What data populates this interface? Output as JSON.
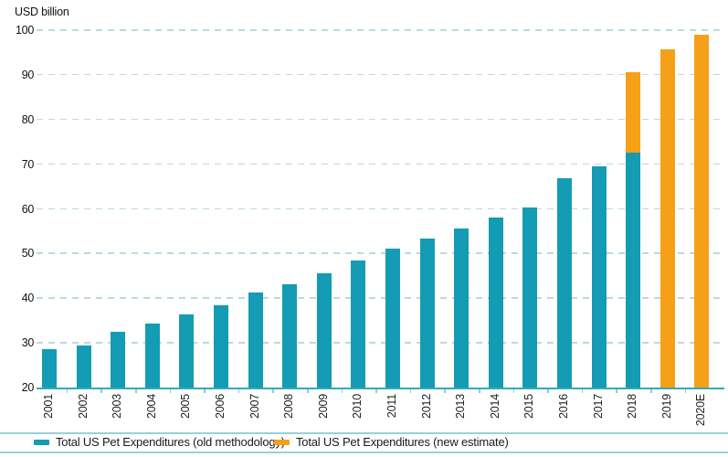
{
  "header": {
    "unit_label": "USD billion"
  },
  "colors": {
    "old_series": "#149cb4",
    "new_series": "#f6a018",
    "gridline": "#b9dae1",
    "axis_line": "#33a9bb",
    "xtick": "#8ecbd6",
    "legend_line": "#9bd0da",
    "text": "#1a1a1a"
  },
  "legend": {
    "items": [
      {
        "label": "Total US Pet Expenditures (old methodology)",
        "color_key": "old_series"
      },
      {
        "label": "Total US Pet Expenditures (new estimate)",
        "color_key": "new_series"
      }
    ],
    "position": "bottom"
  },
  "chart_data": {
    "type": "bar",
    "title": "",
    "ylabel": "USD billion",
    "xlabel": "",
    "ylim": [
      20,
      100
    ],
    "yticks": [
      20,
      30,
      40,
      50,
      60,
      70,
      80,
      90,
      100
    ],
    "grid": "dashed horizontal",
    "legend_position": "bottom",
    "stacked": "2018 shows old methodology (teal) with new-estimate remainder (orange) stacked on top; series values are cumulative totals",
    "categories": [
      "2001",
      "2002",
      "2003",
      "2004",
      "2005",
      "2006",
      "2007",
      "2008",
      "2009",
      "2010",
      "2011",
      "2012",
      "2013",
      "2014",
      "2015",
      "2016",
      "2017",
      "2018",
      "2019",
      "2020E"
    ],
    "series": [
      {
        "name": "Total US Pet Expenditures (old methodology)",
        "color_key": "old_series",
        "values": [
          28.5,
          29.5,
          32.4,
          34.4,
          36.3,
          38.5,
          41.2,
          43.2,
          45.5,
          48.4,
          51.0,
          53.3,
          55.7,
          58.0,
          60.3,
          66.8,
          69.5,
          72.6,
          null,
          null
        ]
      },
      {
        "name": "Total US Pet Expenditures (new estimate)",
        "color_key": "new_series",
        "values": [
          null,
          null,
          null,
          null,
          null,
          null,
          null,
          null,
          null,
          null,
          null,
          null,
          null,
          null,
          null,
          null,
          null,
          90.5,
          95.7,
          99.0
        ]
      }
    ]
  }
}
